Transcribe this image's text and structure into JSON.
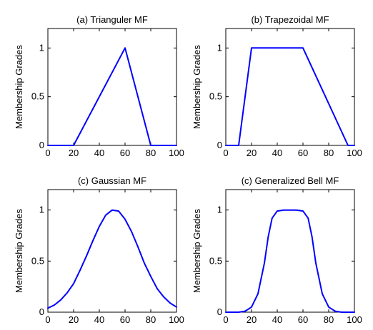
{
  "figure": {
    "header_text": "                        "
  },
  "chart_data": [
    {
      "type": "line",
      "title": "(a) Trianguler MF",
      "xlabel": "",
      "ylabel": "Membership Grades",
      "xlim": [
        0,
        100
      ],
      "ylim": [
        0,
        1.2
      ],
      "xticks": [
        "0",
        "20",
        "40",
        "60",
        "80",
        "100"
      ],
      "yticks": [
        "0",
        "0.5",
        "1"
      ],
      "grid": false,
      "series": [
        {
          "color": "#0000ff",
          "x": [
            0,
            20,
            60,
            80,
            100
          ],
          "y": [
            0,
            0,
            1,
            0,
            0
          ]
        }
      ]
    },
    {
      "type": "line",
      "title": "(b) Trapezoidal MF",
      "xlabel": "",
      "ylabel": "Membership Grades",
      "xlim": [
        0,
        100
      ],
      "ylim": [
        0,
        1.2
      ],
      "xticks": [
        "0",
        "20",
        "40",
        "60",
        "80",
        "100"
      ],
      "yticks": [
        "0",
        "0.5",
        "1"
      ],
      "grid": false,
      "series": [
        {
          "color": "#0000ff",
          "x": [
            0,
            10,
            20,
            60,
            95,
            100
          ],
          "y": [
            0,
            0,
            1,
            1,
            0,
            0
          ]
        }
      ]
    },
    {
      "type": "line",
      "title": "(c) Gaussian MF",
      "xlabel": "",
      "ylabel": "Membership Grades",
      "xlim": [
        0,
        100
      ],
      "ylim": [
        0,
        1.2
      ],
      "xticks": [
        "0",
        "20",
        "40",
        "60",
        "80",
        "100"
      ],
      "yticks": [
        "0",
        "0.5",
        "1"
      ],
      "grid": false,
      "series": [
        {
          "color": "#0000ff",
          "x": [
            0,
            5,
            10,
            15,
            20,
            25,
            30,
            35,
            40,
            45,
            50,
            55,
            60,
            65,
            70,
            75,
            80,
            85,
            90,
            95,
            100
          ],
          "y": [
            0.04,
            0.07,
            0.12,
            0.19,
            0.28,
            0.41,
            0.55,
            0.7,
            0.84,
            0.95,
            1.0,
            0.99,
            0.91,
            0.79,
            0.64,
            0.48,
            0.35,
            0.23,
            0.15,
            0.09,
            0.05
          ]
        }
      ]
    },
    {
      "type": "line",
      "title": "(c) Generalized Bell MF",
      "xlabel": "",
      "ylabel": "Membership Grades",
      "xlim": [
        0,
        100
      ],
      "ylim": [
        0,
        1.2
      ],
      "xticks": [
        "0",
        "20",
        "40",
        "60",
        "80",
        "100"
      ],
      "yticks": [
        "0",
        "0.5",
        "1"
      ],
      "grid": false,
      "series": [
        {
          "color": "#0000ff",
          "x": [
            0,
            10,
            15,
            20,
            25,
            30,
            33,
            36,
            40,
            45,
            50,
            55,
            60,
            64,
            67,
            70,
            75,
            80,
            85,
            90,
            100
          ],
          "y": [
            0,
            0.0,
            0.01,
            0.05,
            0.18,
            0.48,
            0.74,
            0.92,
            0.99,
            1.0,
            1.0,
            1.0,
            0.99,
            0.92,
            0.74,
            0.48,
            0.18,
            0.05,
            0.01,
            0.0,
            0
          ]
        }
      ]
    }
  ]
}
